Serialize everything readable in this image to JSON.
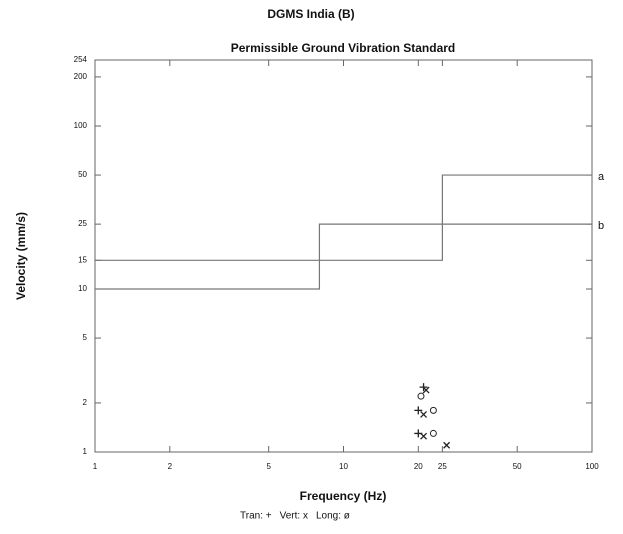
{
  "chart_data": {
    "type": "line",
    "title": "DGMS India (B)",
    "subtitle": "Permissible Ground Vibration Standard",
    "x_label": "Frequency (Hz)",
    "y_label": "Velocity (mm/s)",
    "log_x": true,
    "log_y": true,
    "grid": false,
    "xlim": [
      1,
      100
    ],
    "ylim": [
      1,
      254
    ],
    "xticks": [
      1,
      2,
      5,
      10,
      20,
      25,
      50,
      100
    ],
    "yticks": [
      1,
      2,
      5,
      10,
      15,
      25,
      50,
      100,
      200,
      254
    ],
    "series": [
      {
        "name": "a",
        "type": "line",
        "color": "#777777",
        "x": [
          1,
          8,
          8,
          25,
          25,
          100
        ],
        "values": [
          10,
          10,
          25,
          25,
          50,
          50
        ]
      },
      {
        "name": "b",
        "type": "line",
        "color": "#777777",
        "x": [
          1,
          25,
          25,
          100
        ],
        "values": [
          15,
          15,
          25,
          25
        ]
      },
      {
        "name": "Tran: +",
        "type": "scatter",
        "marker": "plus",
        "color": "#222222",
        "x": [
          21,
          20,
          20
        ],
        "values": [
          2.5,
          1.8,
          1.3
        ]
      },
      {
        "name": "Vert: x",
        "type": "scatter",
        "marker": "cross",
        "color": "#222222",
        "x": [
          21.5,
          21,
          21,
          26
        ],
        "values": [
          2.4,
          1.7,
          1.25,
          1.1
        ]
      },
      {
        "name": "Long: ø",
        "type": "scatter",
        "marker": "circle",
        "color": "#222222",
        "x": [
          20.5,
          23,
          23
        ],
        "values": [
          2.2,
          1.8,
          1.3
        ]
      }
    ]
  }
}
